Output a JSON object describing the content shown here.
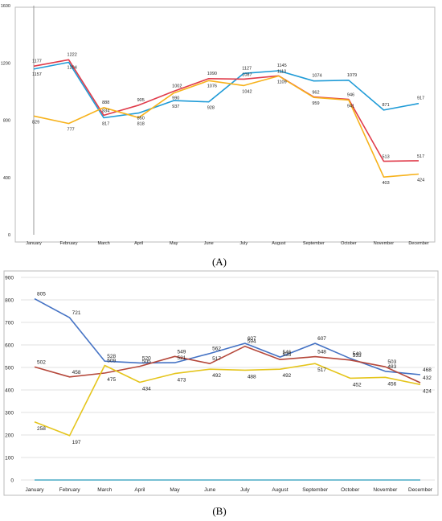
{
  "chart_data": [
    {
      "type": "line",
      "panel_label": "(A)",
      "categories": [
        "January",
        "February",
        "March",
        "April",
        "May",
        "June",
        "July",
        "August",
        "September",
        "October",
        "November",
        "December"
      ],
      "ylim": [
        0,
        1600
      ],
      "yticks": [
        0,
        400,
        800,
        1200,
        1600
      ],
      "grid": false,
      "legend": "none",
      "series": [
        {
          "color": "#1f9bd7",
          "values": [
            1157,
            1204,
            817,
            850,
            937,
            928,
            1127,
            1145,
            1074,
            1079,
            871,
            917
          ]
        },
        {
          "color": "#e03c4b",
          "values": [
            1177,
            1222,
            834,
            905,
            1002,
            1090,
            1087,
            1110,
            962,
            946,
            513,
            517
          ]
        },
        {
          "color": "#f7b21b",
          "values": [
            829,
            777,
            888,
            818,
            990,
            1076,
            1042,
            1109,
            959,
            941,
            403,
            424
          ]
        }
      ]
    },
    {
      "type": "line",
      "panel_label": "(B)",
      "categories": [
        "January",
        "February",
        "March",
        "April",
        "May",
        "June",
        "July",
        "August",
        "September",
        "October",
        "November",
        "December"
      ],
      "ylim": [
        0,
        900
      ],
      "yticks": [
        0,
        100,
        200,
        300,
        400,
        500,
        600,
        700,
        800,
        900
      ],
      "grid": true,
      "legend": "none",
      "series": [
        {
          "color": "#4472c4",
          "values": [
            805,
            721,
            528,
            520,
            521,
            562,
            607,
            546,
            607,
            540,
            483,
            468
          ]
        },
        {
          "color": "#b5473a",
          "values": [
            502,
            458,
            475,
            505,
            549,
            517,
            594,
            535,
            548,
            533,
            503,
            432
          ]
        },
        {
          "color": "#e5c51c",
          "values": [
            258,
            197,
            509,
            434,
            473,
            492,
            488,
            492,
            517,
            452,
            456,
            424
          ]
        },
        {
          "color": "#4aacc6",
          "values": [
            0,
            0,
            0,
            0,
            0,
            0,
            0,
            0,
            0,
            0,
            0,
            0
          ]
        }
      ]
    }
  ]
}
